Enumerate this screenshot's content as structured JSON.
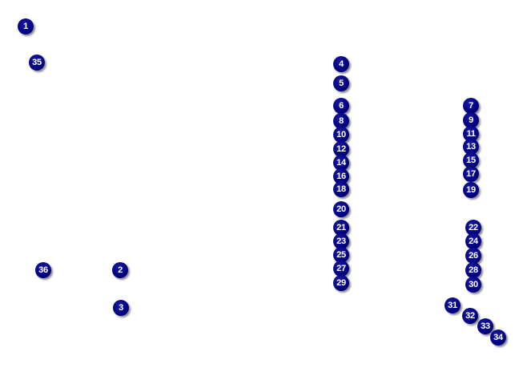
{
  "marker_color": "#000080",
  "markers": [
    "1",
    "2",
    "3",
    "4",
    "5",
    "6",
    "7",
    "8",
    "9",
    "10",
    "11",
    "12",
    "13",
    "14",
    "15",
    "16",
    "17",
    "18",
    "19",
    "20",
    "21",
    "22",
    "23",
    "24",
    "25",
    "26",
    "27",
    "28",
    "29",
    "30",
    "31",
    "32",
    "33",
    "34",
    "35",
    "36"
  ]
}
